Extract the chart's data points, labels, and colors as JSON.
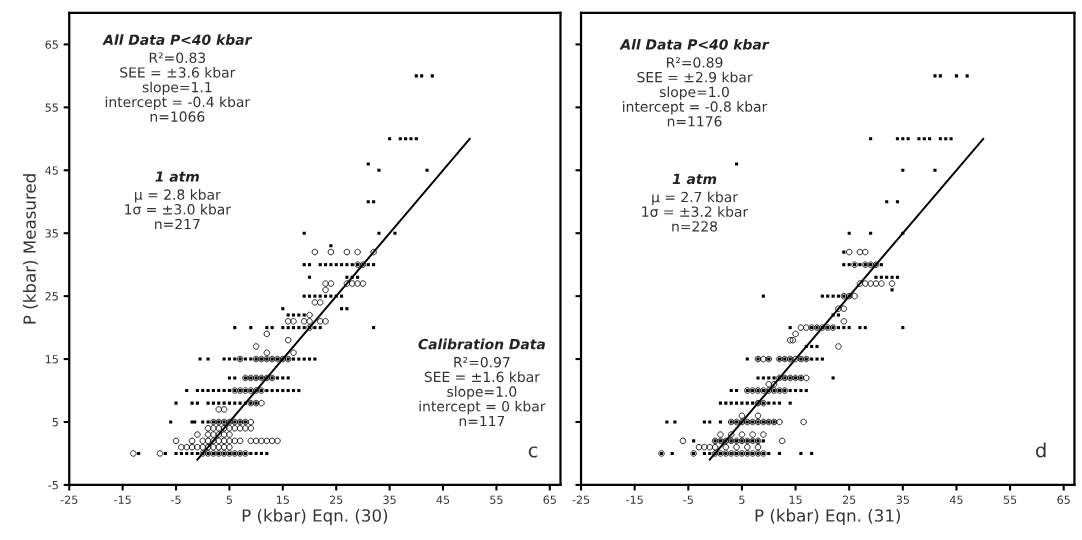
{
  "chart_data": [
    {
      "type": "scatter",
      "xlabel": "P (kbar) Eqn. (30)",
      "ylabel": "P (kbar) Measured",
      "xlim": [
        -25,
        67
      ],
      "ylim": [
        -5,
        70
      ],
      "xticks": [
        -25,
        -15,
        -5,
        5,
        15,
        25,
        35,
        45,
        55,
        65
      ],
      "yticks": [
        -5,
        5,
        15,
        25,
        35,
        45,
        55,
        65
      ],
      "grid": false,
      "legend": false,
      "annotations": [
        "All Data P<40 kbar\nR²=0.83\nSEE = ±3.6 kbar\nslope=1.1\nintercept = -0.4 kbar\nn=1066",
        "1 atm\nμ = 2.8 kbar\n1σ = ±3.0 kbar\nn=217",
        "Calibration Data\nR²=0.97\nSEE = ±1.6 kbar\nslope=1.0\nintercept = 0 kbar\nn=117",
        "c"
      ],
      "series": [
        {
          "marker": "square",
          "color": "#000000",
          "x": [
            -12,
            -7,
            -5,
            -4,
            -3,
            -2,
            -1,
            0,
            1,
            2,
            3,
            4,
            5,
            6,
            7,
            8,
            9,
            10,
            11,
            12,
            -6,
            -2,
            -1.5,
            0,
            1,
            2,
            3,
            4,
            5,
            6,
            7,
            8,
            -5,
            -2,
            -1,
            1,
            2,
            3,
            4,
            5,
            6,
            7,
            8,
            9,
            10,
            -3,
            -1,
            0,
            1,
            2,
            3,
            4,
            5,
            6,
            7,
            8,
            9,
            10,
            11,
            12,
            13,
            14,
            15,
            16,
            17,
            18,
            5,
            6,
            8,
            9,
            10,
            11,
            12,
            13,
            14,
            15,
            16,
            -0.5,
            1,
            4,
            5,
            6,
            7,
            8,
            9,
            10,
            11,
            12,
            13,
            14,
            15,
            16,
            17,
            18,
            19,
            20,
            21,
            6,
            9,
            12,
            13,
            15,
            16,
            17,
            18,
            19,
            20,
            21,
            22,
            32,
            16,
            17,
            18,
            19,
            15,
            26,
            27,
            19,
            20,
            21,
            22,
            23,
            24,
            25,
            26,
            20,
            27,
            28,
            29,
            19,
            20,
            22,
            23,
            24,
            25,
            26,
            27,
            28,
            29,
            30,
            31,
            32,
            24,
            19,
            33,
            36,
            31,
            32,
            33,
            42,
            31,
            35,
            37,
            38,
            39,
            40,
            40,
            41,
            43
          ],
          "values": [
            0,
            0,
            0,
            0,
            0,
            0,
            0,
            0,
            0,
            0,
            0,
            0,
            0,
            0,
            0,
            0,
            0,
            0,
            0,
            0,
            5,
            5,
            5,
            5,
            5,
            5,
            5,
            5,
            5,
            5,
            5,
            5,
            8,
            8,
            8,
            8,
            8,
            8,
            8,
            8,
            8,
            8,
            8,
            8,
            8,
            10,
            10,
            10,
            10,
            10,
            10,
            10,
            10,
            10,
            10,
            10,
            10,
            10,
            10,
            10,
            10,
            10,
            10,
            10,
            10,
            10,
            12,
            12,
            12,
            12,
            12,
            12,
            12,
            12,
            12,
            12,
            12,
            15,
            15,
            15,
            15,
            15,
            15,
            15,
            15,
            15,
            15,
            15,
            15,
            15,
            15,
            15,
            15,
            15,
            15,
            15,
            15,
            20,
            20,
            20,
            20,
            20,
            20,
            20,
            20,
            20,
            20,
            20,
            20,
            20,
            22,
            22,
            22,
            22,
            23,
            23,
            23,
            25,
            25,
            25,
            25,
            25,
            25,
            25,
            25,
            28,
            28,
            28,
            28,
            30,
            30,
            30,
            30,
            30,
            30,
            30,
            30,
            30,
            30,
            30,
            30,
            30,
            33,
            35,
            35,
            35,
            40,
            40,
            45,
            45,
            46,
            50,
            50,
            50,
            50,
            50,
            60,
            60,
            60
          ]
        },
        {
          "marker": "circle",
          "color": "#000000",
          "x": [
            -13,
            -8,
            0,
            1,
            2,
            3,
            4,
            5,
            6,
            7,
            8,
            -4,
            -3,
            -2,
            -1,
            0,
            1,
            2,
            3,
            4,
            5,
            -5,
            -2,
            0,
            1,
            2,
            3,
            4,
            5,
            6,
            7,
            9,
            10,
            11,
            12,
            13,
            14,
            -1,
            1,
            2,
            3,
            4,
            5,
            1,
            2,
            3,
            4,
            5,
            6,
            7,
            8,
            9,
            2,
            3,
            4,
            5,
            6,
            7,
            8,
            9,
            3,
            4,
            9,
            10,
            11,
            6,
            7,
            8,
            9,
            10,
            11,
            8,
            9,
            10,
            11,
            12,
            13,
            7,
            10,
            11,
            12,
            13,
            14,
            15,
            16,
            12,
            17,
            10,
            16,
            12,
            20,
            16,
            17,
            19,
            20,
            22,
            23,
            20,
            21,
            22,
            23,
            23,
            24,
            27,
            28,
            29,
            30,
            29,
            30,
            21,
            24,
            27,
            29,
            32
          ],
          "values": [
            0,
            0,
            0,
            0,
            0,
            0,
            0,
            0,
            0,
            0,
            0,
            1,
            1,
            1,
            1,
            1,
            1,
            1,
            1,
            1,
            1,
            2,
            2,
            2,
            2,
            2,
            2,
            2,
            2,
            2,
            2,
            2,
            2,
            2,
            2,
            2,
            2,
            3,
            3,
            3,
            3,
            3,
            3,
            4,
            4,
            4,
            4,
            4,
            4,
            4,
            4,
            4,
            5,
            5,
            5,
            5,
            5,
            5,
            5,
            5,
            7,
            7,
            8,
            8,
            8,
            10,
            10,
            10,
            10,
            10,
            10,
            12,
            12,
            12,
            12,
            12,
            12,
            15,
            15,
            15,
            15,
            15,
            15,
            15,
            15,
            16,
            16,
            17,
            18,
            19,
            20,
            21,
            21,
            21,
            21,
            21,
            21,
            22,
            24,
            24,
            26,
            27,
            27,
            27,
            27,
            27,
            27,
            30,
            30,
            32,
            32,
            32,
            32,
            32
          ]
        },
        {
          "type": "line",
          "color": "#000000",
          "x": [
            -1,
            50
          ],
          "values": [
            -1,
            50
          ]
        }
      ]
    },
    {
      "type": "scatter",
      "xlabel": "P (kbar) Eqn. (31)",
      "xlim": [
        -25,
        67
      ],
      "ylim": [
        -5,
        70
      ],
      "xticks": [
        -25,
        -15,
        -5,
        5,
        15,
        25,
        35,
        45,
        55,
        65
      ],
      "yticks": [
        -5,
        5,
        15,
        25,
        35,
        45,
        55,
        65
      ],
      "grid": false,
      "legend": false,
      "tick_labels": "x",
      "annotations": [
        "All Data P<40 kbar\nR²=0.89\nSEE = ±2.9 kbar\nslope=1.0\nintercept = -0.8 kbar\nn=1176",
        "1 atm\nμ = 2.7 kbar\n1σ = ±3.2 kbar\nn=228",
        "d"
      ],
      "series": [
        {
          "marker": "square",
          "color": "#000000",
          "x": [
            -10,
            -8,
            -4,
            -2,
            -1,
            0,
            1,
            2,
            3,
            4,
            5,
            6,
            7,
            8,
            9,
            10,
            12,
            16,
            18,
            -4,
            0,
            1,
            2,
            3,
            4,
            5,
            6,
            7,
            8,
            9,
            -9,
            -7.5,
            -2,
            -1,
            1,
            3,
            4,
            5,
            6,
            7,
            8,
            9,
            10,
            11,
            1,
            2,
            3,
            4,
            5,
            6,
            7,
            8,
            9,
            10,
            11,
            12,
            14,
            3,
            4,
            6,
            7,
            8,
            9,
            10,
            11,
            12,
            13,
            14,
            15,
            16,
            17,
            8,
            9,
            10,
            11,
            12,
            13,
            14,
            15,
            16,
            22,
            6,
            8,
            10,
            12,
            13,
            14,
            16,
            17,
            18,
            19,
            20,
            17,
            18,
            19,
            14,
            18,
            19,
            20,
            21,
            22,
            23,
            24,
            25,
            27,
            28,
            35,
            22,
            23,
            9,
            20,
            21,
            22,
            23,
            24,
            25,
            33,
            30,
            31,
            32,
            33,
            34,
            24,
            25,
            26,
            27,
            28,
            29,
            30,
            31,
            24,
            25,
            29,
            35,
            32,
            34,
            35,
            41,
            4,
            29,
            34,
            35,
            36,
            38,
            39,
            40,
            42,
            43,
            44,
            41,
            42,
            45,
            47
          ],
          "values": [
            0,
            0,
            0,
            0,
            0,
            0,
            0,
            0,
            0,
            0,
            0,
            0,
            0,
            0,
            0,
            0,
            0,
            0,
            0,
            2,
            2,
            2,
            2,
            2,
            2,
            2,
            2,
            2,
            2,
            2,
            5,
            5,
            5,
            5,
            5,
            5,
            5,
            5,
            5,
            5,
            5,
            5,
            5,
            5,
            8,
            8,
            8,
            8,
            8,
            8,
            8,
            8,
            8,
            8,
            8,
            8,
            8,
            10,
            10,
            10,
            10,
            10,
            10,
            10,
            10,
            10,
            10,
            10,
            10,
            10,
            10,
            12,
            12,
            12,
            12,
            12,
            12,
            12,
            12,
            12,
            12,
            15,
            15,
            15,
            15,
            15,
            15,
            15,
            15,
            15,
            15,
            15,
            17,
            17,
            17,
            20,
            20,
            20,
            20,
            20,
            20,
            20,
            20,
            20,
            20,
            20,
            20,
            22,
            22,
            25,
            25,
            25,
            25,
            25,
            25,
            25,
            26,
            28,
            28,
            28,
            28,
            28,
            30,
            30,
            30,
            30,
            30,
            30,
            30,
            30,
            32,
            35,
            35,
            35,
            40,
            40,
            45,
            45,
            46,
            50,
            50,
            50,
            50,
            50,
            50,
            50,
            50,
            50,
            50,
            60,
            60,
            60,
            60
          ]
        },
        {
          "marker": "circle",
          "color": "#000000",
          "x": [
            -10,
            -4,
            0,
            1,
            2,
            3,
            4,
            5,
            6,
            7,
            8,
            9,
            -3,
            -2,
            -1,
            0,
            2,
            4,
            6,
            8,
            -6,
            0,
            1,
            2,
            3,
            4,
            5,
            6,
            7,
            8,
            12.5,
            1,
            3,
            5,
            7,
            9,
            3,
            4,
            5,
            6,
            7,
            8,
            9,
            10,
            11,
            12,
            16.5,
            5,
            8,
            8,
            9,
            6,
            7,
            8,
            9,
            10,
            11,
            12,
            13,
            10,
            11,
            12,
            13,
            14,
            15,
            16,
            17,
            8,
            9,
            10,
            12,
            13,
            14,
            15,
            16,
            17,
            14,
            14.5,
            15,
            16,
            17,
            18,
            19,
            20,
            21,
            22,
            23,
            24,
            23,
            24,
            24,
            25,
            26,
            27,
            28,
            29,
            30,
            31,
            33,
            26,
            28,
            29,
            30,
            25,
            27,
            28
          ],
          "values": [
            0,
            0,
            0,
            0,
            0,
            0,
            0,
            0,
            0,
            0,
            0,
            0,
            1,
            1,
            1,
            1,
            1,
            1,
            1,
            1,
            2,
            2,
            2,
            2,
            2,
            2,
            2,
            2,
            2,
            2,
            2,
            3,
            3,
            3,
            3,
            3,
            5,
            5,
            5,
            5,
            5,
            5,
            5,
            5,
            5,
            5,
            5,
            6,
            6,
            8,
            8,
            10,
            10,
            10,
            10,
            10,
            10,
            10,
            10,
            11,
            11,
            12,
            12,
            12,
            12,
            12,
            12,
            15,
            15,
            15,
            15,
            15,
            15,
            15,
            15,
            15,
            18,
            18,
            19,
            20,
            20,
            20,
            20,
            20,
            20,
            20,
            17,
            21,
            23,
            23,
            25,
            25,
            25,
            27,
            27,
            27,
            27,
            27,
            27,
            30,
            30,
            30,
            30,
            32,
            32,
            32
          ]
        },
        {
          "type": "line",
          "color": "#000000",
          "x": [
            -1,
            50
          ],
          "values": [
            -1,
            50
          ]
        }
      ]
    }
  ]
}
